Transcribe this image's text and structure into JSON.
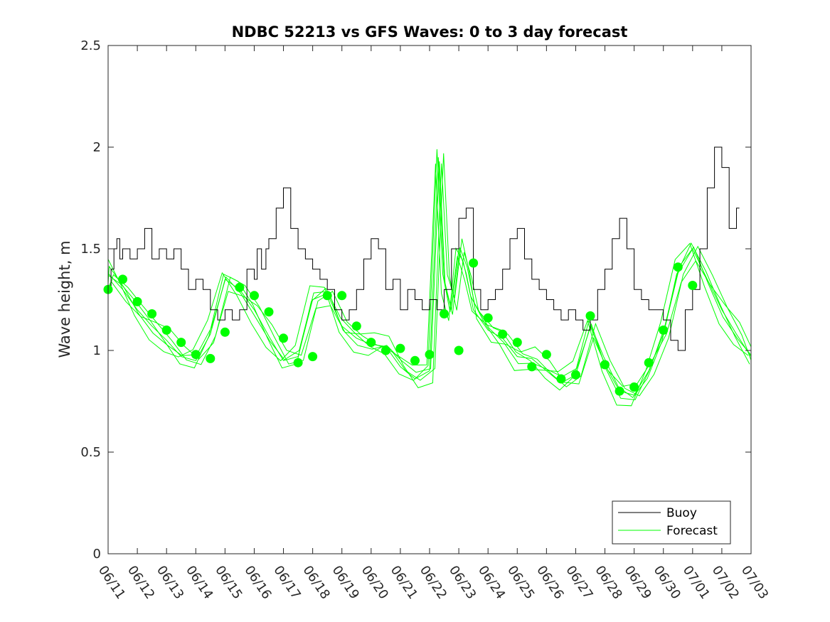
{
  "chart_data": {
    "type": "line",
    "title": "NDBC 52213 vs GFS Waves: 0 to 3 day forecast",
    "xlabel": "",
    "ylabel": "Wave height, m",
    "x_range": [
      "06/11",
      "07/03"
    ],
    "ylim": [
      0,
      2.5
    ],
    "x_ticks": [
      "06/11",
      "06/12",
      "06/13",
      "06/14",
      "06/15",
      "06/16",
      "06/17",
      "06/18",
      "06/19",
      "06/20",
      "06/21",
      "06/22",
      "06/23",
      "06/24",
      "06/25",
      "06/26",
      "06/27",
      "06/28",
      "06/29",
      "06/30",
      "07/01",
      "07/02",
      "07/03"
    ],
    "y_ticks": [
      "0",
      "0.5",
      "1",
      "1.5",
      "2",
      "2.5"
    ],
    "y_tick_values": [
      0,
      0.5,
      1,
      1.5,
      2,
      2.5
    ],
    "grid": false,
    "legend": {
      "position": "bottom-right",
      "entries": [
        "Buoy",
        "Forecast"
      ]
    },
    "colors": {
      "buoy": "#000000",
      "forecast": "#00ff00"
    },
    "series": [
      {
        "name": "Buoy",
        "x_days": [
          0,
          0.1,
          0.2,
          0.3,
          0.4,
          0.5,
          0.75,
          1,
          1.25,
          1.5,
          1.75,
          2,
          2.25,
          2.5,
          2.75,
          3,
          3.25,
          3.5,
          3.75,
          4,
          4.25,
          4.5,
          4.75,
          5,
          5.1,
          5.25,
          5.4,
          5.5,
          5.75,
          6,
          6.25,
          6.5,
          6.75,
          7,
          7.25,
          7.5,
          7.75,
          8,
          8.25,
          8.5,
          8.75,
          9,
          9.25,
          9.5,
          9.75,
          10,
          10.25,
          10.5,
          10.75,
          11,
          11.25,
          11.5,
          11.75,
          12,
          12.25,
          12.5,
          12.75,
          13,
          13.25,
          13.5,
          13.75,
          14,
          14.25,
          14.5,
          14.75,
          15,
          15.25,
          15.5,
          15.75,
          16,
          16.25,
          16.5,
          16.75,
          17,
          17.25,
          17.5,
          17.75,
          18,
          18.25,
          18.5,
          18.75,
          19,
          19.25,
          19.5,
          19.75,
          20,
          20.25,
          20.5,
          20.75,
          21,
          21.25,
          21.5,
          21.6
        ],
        "values": [
          1.3,
          1.4,
          1.5,
          1.55,
          1.45,
          1.5,
          1.45,
          1.5,
          1.6,
          1.45,
          1.5,
          1.45,
          1.5,
          1.4,
          1.3,
          1.35,
          1.3,
          1.2,
          1.15,
          1.2,
          1.15,
          1.2,
          1.4,
          1.35,
          1.5,
          1.4,
          1.5,
          1.55,
          1.7,
          1.8,
          1.6,
          1.5,
          1.45,
          1.4,
          1.35,
          1.3,
          1.2,
          1.15,
          1.2,
          1.3,
          1.45,
          1.55,
          1.5,
          1.3,
          1.35,
          1.2,
          1.3,
          1.25,
          1.2,
          1.25,
          1.2,
          1.3,
          1.5,
          1.65,
          1.7,
          1.3,
          1.2,
          1.25,
          1.3,
          1.4,
          1.55,
          1.6,
          1.45,
          1.35,
          1.3,
          1.25,
          1.2,
          1.15,
          1.2,
          1.15,
          1.1,
          1.15,
          1.3,
          1.4,
          1.55,
          1.65,
          1.5,
          1.3,
          1.25,
          1.2,
          1.2,
          1.15,
          1.05,
          1.0,
          1.2,
          1.3,
          1.5,
          1.8,
          2.0,
          1.9,
          1.6,
          1.7,
          1.7
        ]
      },
      {
        "name": "Forecast",
        "points_x_days": [
          -0.5,
          0,
          0.5,
          1,
          1.5,
          2,
          2.5,
          3,
          3.5,
          4,
          4.5,
          5,
          5.5,
          6,
          6.5,
          7,
          7.5,
          8,
          8.5,
          9,
          9.5,
          10,
          10.5,
          11,
          11.5,
          12,
          12.5,
          13,
          13.5,
          14,
          14.5,
          15,
          15.5,
          16,
          16.5,
          17,
          17.5,
          18,
          18.5,
          19,
          19.5,
          20,
          20.5,
          21,
          21.5
        ],
        "points_values": [
          1.3,
          1.35,
          1.24,
          1.18,
          1.1,
          1.04,
          0.98,
          0.96,
          1.09,
          1.31,
          1.27,
          1.19,
          1.06,
          0.94,
          0.97,
          1.27,
          1.27,
          1.12,
          1.04,
          1.0,
          1.01,
          0.95,
          0.98,
          1.18,
          1.0,
          1.43,
          1.16,
          1.08,
          1.04,
          0.92,
          0.98,
          0.86,
          0.88,
          1.17,
          0.93,
          0.8,
          0.82,
          0.94,
          1.1,
          1.41,
          1.32,
          null,
          null,
          null,
          null
        ],
        "line_x_days": [
          -0.5,
          0,
          0.5,
          1,
          1.5,
          2,
          2.5,
          3,
          3.5,
          4,
          4.5,
          5,
          5.5,
          6,
          6.5,
          7,
          7.5,
          8,
          8.5,
          9,
          9.5,
          10,
          10.5,
          11,
          11.3,
          11.5,
          11.75,
          12,
          12.25,
          12.5,
          13,
          13.5,
          14,
          14.5,
          15,
          15.5,
          16,
          16.5,
          17,
          17.5,
          18,
          18.5,
          19,
          19.5,
          20,
          20.5,
          21,
          21.5,
          22
        ],
        "line_values": [
          1.3,
          1.38,
          1.3,
          1.2,
          1.12,
          1.05,
          0.97,
          0.95,
          1.08,
          1.35,
          1.3,
          1.2,
          1.07,
          0.95,
          0.97,
          1.25,
          1.28,
          1.12,
          1.06,
          1.03,
          1.02,
          0.92,
          0.86,
          0.9,
          1.95,
          1.35,
          1.2,
          1.5,
          1.38,
          1.2,
          1.1,
          1.06,
          0.97,
          0.96,
          0.9,
          0.84,
          0.88,
          1.12,
          0.93,
          0.8,
          0.78,
          0.9,
          1.08,
          1.38,
          1.5,
          1.35,
          1.2,
          1.08,
          0.97
        ]
      }
    ]
  }
}
